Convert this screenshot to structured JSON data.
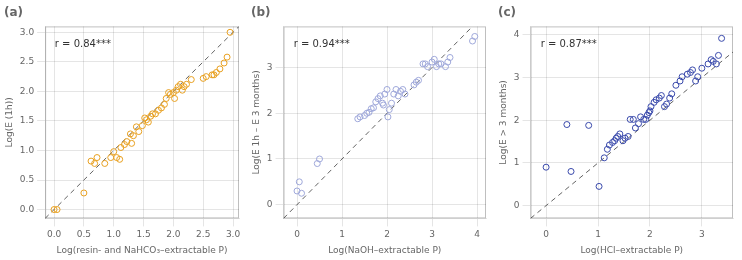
{
  "chart_data": [
    {
      "type": "scatter",
      "title": "(a)",
      "annotation": "r = 0.84***",
      "xlabel": "Log(resin- and NaHCO₃–extractable P)",
      "ylabel": "Log(E (1h))",
      "xlim": [
        -0.15,
        3.1
      ],
      "ylim": [
        -0.15,
        3.1
      ],
      "xticks": [
        {
          "value": 0.0,
          "label": "0.0"
        },
        0.5,
        {
          "value": 1.0,
          "label": "1.0"
        },
        1.5,
        {
          "value": 2.0,
          "label": "2.0"
        },
        2.5,
        {
          "value": 3.0,
          "label": "3.0"
        }
      ],
      "yticks": [
        {
          "value": 0.0,
          "label": "0.0"
        },
        0.5,
        {
          "value": 1.0,
          "label": "1.0"
        },
        1.5,
        {
          "value": 2.0,
          "label": "2.0"
        },
        2.5,
        {
          "value": 3.0,
          "label": "3.0"
        }
      ],
      "color": "#E8A020",
      "marker": "circle",
      "x": [
        0.0,
        0.05,
        0.5,
        0.62,
        0.68,
        0.72,
        0.85,
        0.95,
        1.0,
        1.05,
        1.1,
        1.12,
        1.18,
        1.22,
        1.28,
        1.3,
        1.33,
        1.38,
        1.42,
        1.48,
        1.52,
        1.55,
        1.58,
        1.62,
        1.65,
        1.7,
        1.75,
        1.8,
        1.85,
        1.88,
        1.92,
        1.95,
        2.0,
        2.02,
        2.05,
        2.08,
        2.12,
        2.15,
        2.18,
        2.22,
        2.3,
        2.5,
        2.55,
        2.65,
        2.68,
        2.72,
        2.78,
        2.85,
        2.9,
        2.95
      ],
      "values": [
        0.0,
        0.0,
        0.28,
        0.82,
        0.78,
        0.88,
        0.78,
        0.88,
        0.98,
        0.88,
        0.85,
        1.05,
        1.1,
        1.15,
        1.28,
        1.12,
        1.25,
        1.4,
        1.32,
        1.42,
        1.55,
        1.52,
        1.48,
        1.58,
        1.62,
        1.62,
        1.68,
        1.72,
        1.78,
        1.88,
        1.98,
        1.95,
        1.98,
        1.88,
        2.02,
        2.08,
        2.12,
        2.02,
        2.08,
        2.12,
        2.2,
        2.22,
        2.25,
        2.28,
        2.28,
        2.32,
        2.38,
        2.48,
        2.58,
        3.0
      ]
    },
    {
      "type": "scatter",
      "title": "(b)",
      "annotation": "r = 0.94***",
      "xlabel": "Log(NaOH–extractable P)",
      "ylabel": "Log(E 1h – E 3 months)",
      "xlim": [
        -0.3,
        4.2
      ],
      "ylim": [
        -0.3,
        3.9
      ],
      "xticks": [
        0,
        1,
        2,
        3,
        4
      ],
      "yticks": [
        0,
        1,
        2,
        3
      ],
      "color": "#9FA8DA",
      "marker": "circle",
      "x": [
        0.0,
        0.05,
        0.1,
        0.45,
        0.5,
        1.35,
        1.4,
        1.5,
        1.55,
        1.6,
        1.65,
        1.7,
        1.75,
        1.8,
        1.85,
        1.9,
        1.92,
        1.95,
        2.0,
        2.02,
        2.05,
        2.1,
        2.15,
        2.2,
        2.25,
        2.3,
        2.35,
        2.4,
        2.6,
        2.65,
        2.7,
        2.8,
        2.85,
        2.9,
        3.0,
        3.05,
        3.1,
        3.15,
        3.2,
        3.3,
        3.35,
        3.4,
        3.9,
        3.95
      ],
      "values": [
        0.3,
        0.5,
        0.25,
        0.9,
        1.0,
        1.88,
        1.92,
        1.95,
        2.0,
        2.02,
        2.1,
        2.12,
        2.25,
        2.32,
        2.38,
        2.22,
        2.18,
        2.42,
        2.52,
        1.92,
        2.08,
        2.22,
        2.42,
        2.52,
        2.38,
        2.48,
        2.52,
        2.42,
        2.62,
        2.68,
        2.72,
        3.08,
        3.08,
        3.02,
        3.12,
        3.18,
        3.02,
        3.08,
        3.08,
        3.02,
        3.12,
        3.22,
        3.58,
        3.68
      ]
    },
    {
      "type": "scatter",
      "title": "(c)",
      "annotation": "r = 0.87***",
      "xlabel": "Log(HCl–extractable P)",
      "ylabel": "Log(E > 3 months)",
      "xlim": [
        -0.3,
        3.6
      ],
      "ylim": [
        -0.3,
        4.2
      ],
      "xticks": [
        0,
        1,
        2,
        3
      ],
      "yticks": [
        0,
        1,
        2,
        3,
        4
      ],
      "color": "#3949AB",
      "marker": "circle",
      "x": [
        0.0,
        0.4,
        0.48,
        0.82,
        1.02,
        1.12,
        1.18,
        1.22,
        1.28,
        1.32,
        1.35,
        1.38,
        1.42,
        1.48,
        1.52,
        1.58,
        1.62,
        1.68,
        1.72,
        1.78,
        1.82,
        1.88,
        1.92,
        1.95,
        1.98,
        2.0,
        2.02,
        2.08,
        2.12,
        2.18,
        2.22,
        2.28,
        2.32,
        2.38,
        2.42,
        2.5,
        2.58,
        2.62,
        2.72,
        2.78,
        2.82,
        2.88,
        2.92,
        3.0,
        3.12,
        3.18,
        3.22,
        3.28,
        3.32,
        3.38
      ],
      "values": [
        0.9,
        1.9,
        0.8,
        1.88,
        0.45,
        1.12,
        1.32,
        1.42,
        1.48,
        1.52,
        1.58,
        1.62,
        1.68,
        1.52,
        1.58,
        1.62,
        2.02,
        2.02,
        1.82,
        1.92,
        2.08,
        2.02,
        2.02,
        2.12,
        2.18,
        2.22,
        2.32,
        2.42,
        2.48,
        2.52,
        2.58,
        2.32,
        2.38,
        2.52,
        2.62,
        2.82,
        2.92,
        3.02,
        3.08,
        3.12,
        3.18,
        2.92,
        3.02,
        3.22,
        3.32,
        3.42,
        3.38,
        3.32,
        3.52,
        3.92
      ]
    }
  ]
}
